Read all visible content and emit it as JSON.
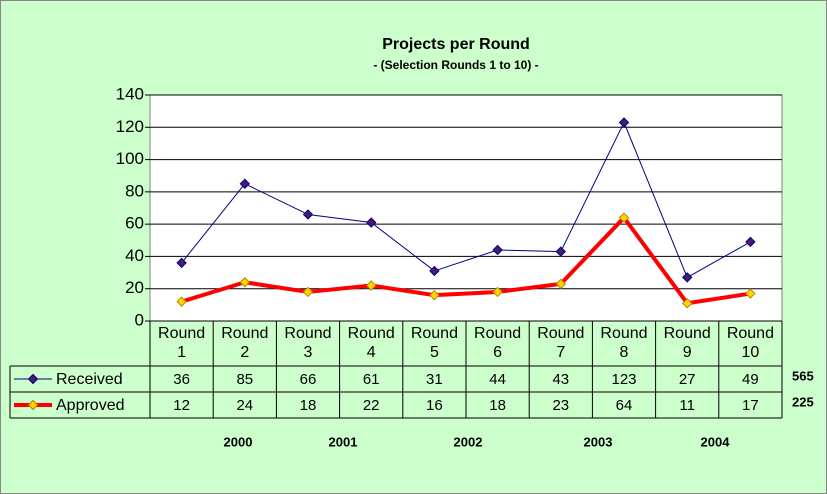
{
  "chart_data": {
    "type": "line",
    "title": "Projects per Round",
    "subtitle": "- (Selection Rounds 1 to 10) -",
    "categories": [
      "Round 1",
      "Round 2",
      "Round 3",
      "Round 4",
      "Round 5",
      "Round 6",
      "Round 7",
      "Round 8",
      "Round 9",
      "Round 10"
    ],
    "series": [
      {
        "name": "Received",
        "color": "#000080",
        "marker_color": "#4b1a6e",
        "values": [
          36,
          85,
          66,
          61,
          31,
          44,
          43,
          123,
          27,
          49
        ]
      },
      {
        "name": "Approved",
        "color": "#ff0000",
        "marker_color": "#ffd700",
        "values": [
          12,
          24,
          18,
          22,
          16,
          18,
          23,
          64,
          11,
          17
        ]
      }
    ],
    "totals": [
      565,
      225
    ],
    "year_labels": [
      "2000",
      "2001",
      "2002",
      "2003",
      "2004"
    ],
    "ylim": [
      0,
      140
    ],
    "yticks": [
      0,
      20,
      40,
      60,
      80,
      100,
      120,
      140
    ],
    "grid": true,
    "background": "#ccffcc"
  }
}
